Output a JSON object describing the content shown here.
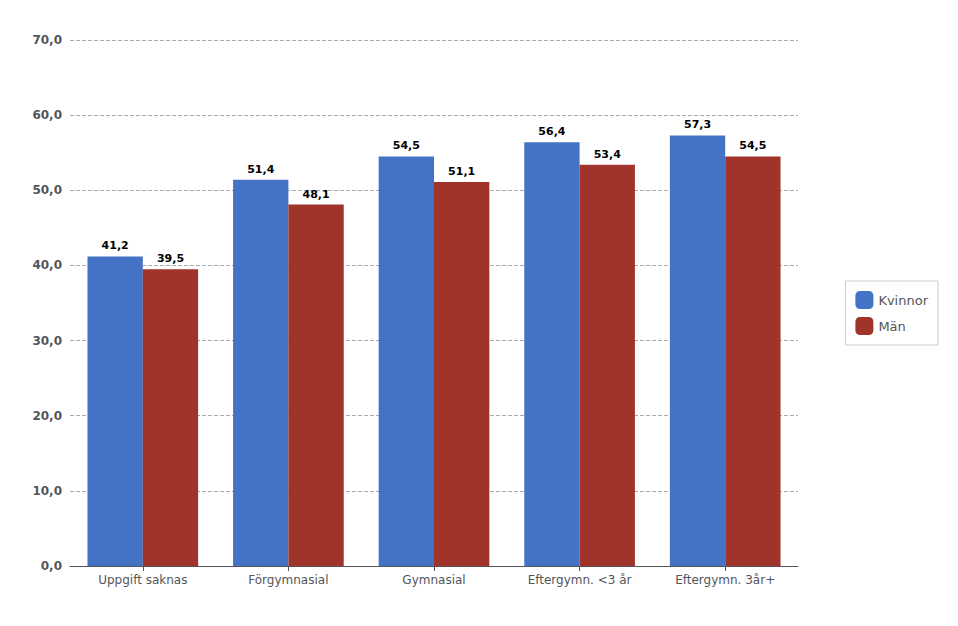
{
  "chart_data": {
    "type": "bar",
    "categories": [
      "Uppgift saknas",
      "Förgymnasial",
      "Gymnasial",
      "Eftergymn. <3 år",
      "Eftergymn. 3år+"
    ],
    "series": [
      {
        "name": "Kvinnor",
        "color": "#4472C4",
        "values": [
          41.2,
          51.4,
          54.5,
          56.4,
          57.3
        ],
        "value_labels": [
          "41,2",
          "51,4",
          "54,5",
          "56,4",
          "57,3"
        ]
      },
      {
        "name": "Män",
        "color": "#A0342A",
        "values": [
          39.5,
          48.1,
          51.1,
          53.4,
          54.5
        ],
        "value_labels": [
          "39,5",
          "48,1",
          "51,1",
          "53,4",
          "54,5"
        ]
      }
    ],
    "ylim": [
      0,
      70
    ],
    "yticks": [
      {
        "value": 0,
        "label": "0,0"
      },
      {
        "value": 10,
        "label": "10,0"
      },
      {
        "value": 20,
        "label": "20,0"
      },
      {
        "value": 30,
        "label": "30,0"
      },
      {
        "value": 40,
        "label": "40,0"
      },
      {
        "value": 50,
        "label": "50,0"
      },
      {
        "value": 60,
        "label": "60,0"
      },
      {
        "value": 70,
        "label": "70,0"
      }
    ],
    "grid": true,
    "legend": "right",
    "data_labels": true
  }
}
